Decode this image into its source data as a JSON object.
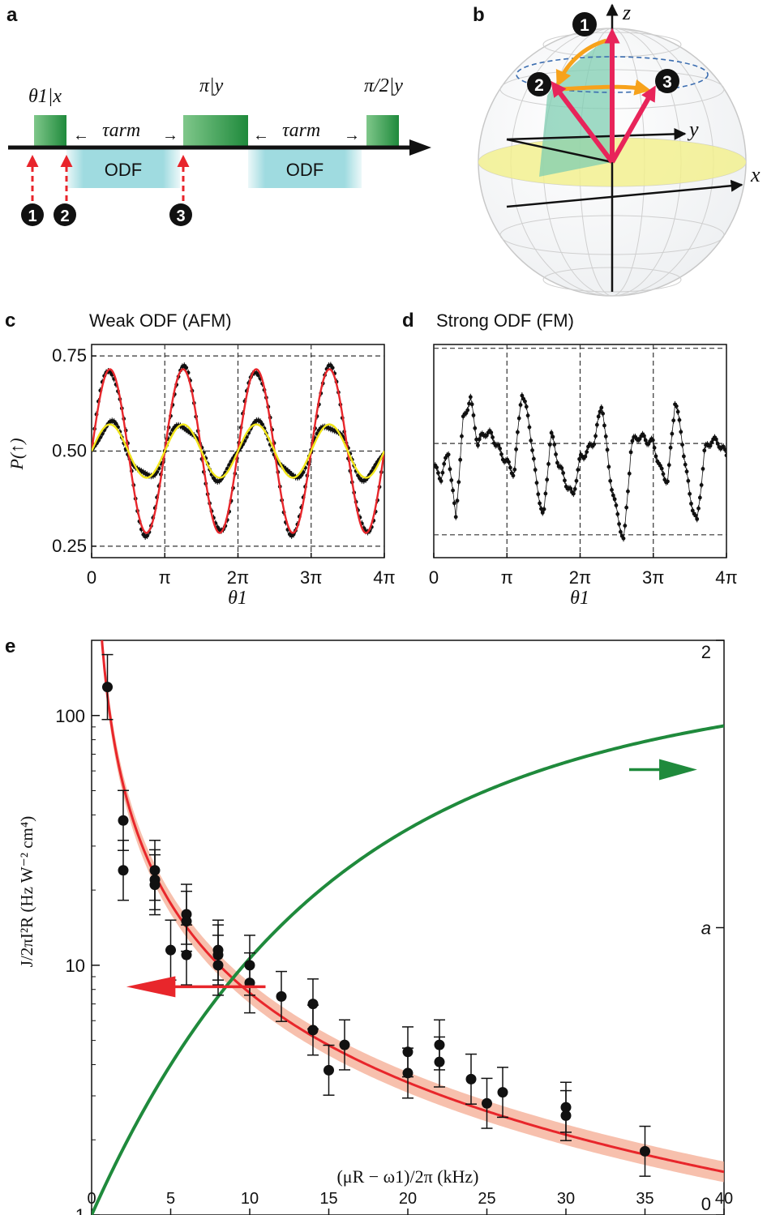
{
  "panels": {
    "a": {
      "label": "a",
      "pulse_labels": [
        "θ1|x",
        "π|y",
        "π/2|y"
      ],
      "tau_label": "τarm",
      "odf_labels": [
        "ODF",
        "ODF"
      ],
      "markers": [
        "1",
        "2",
        "3"
      ],
      "colors": {
        "pulse": "#2f9a46",
        "odf": "#9fdbe0",
        "marker": "#e8242b"
      }
    },
    "b": {
      "label": "b",
      "axis_labels": {
        "x": "x",
        "y": "y",
        "z": "z"
      },
      "markers": [
        "1",
        "2",
        "3"
      ],
      "colors": {
        "vector": "#e8245a",
        "path": "#f7a21b",
        "plane": "#f3f08a",
        "wedge": "#7fcdb2"
      }
    },
    "c": {
      "label": "c",
      "title": "Weak ODF (AFM)"
    },
    "d": {
      "label": "d",
      "title": "Strong ODF (FM)"
    },
    "e": {
      "label": "e"
    }
  },
  "chart_data": [
    {
      "id": "c",
      "type": "scatter",
      "title": "Weak ODF (AFM)",
      "xlabel": "θ1",
      "ylabel": "P(↑)",
      "xlim": [
        0,
        4
      ],
      "ylim": [
        0.22,
        0.78
      ],
      "x_unit": "π",
      "xticks": [
        0,
        1,
        2,
        3,
        4
      ],
      "xtick_labels": [
        "0",
        "π",
        "2π",
        "3π",
        "4π"
      ],
      "yticks": [
        0.25,
        0.5,
        0.75
      ],
      "ytick_labels": [
        "0.25",
        "0.50",
        "0.75"
      ],
      "hlines": [
        0.25,
        0.5,
        0.75
      ],
      "vlines": [
        1,
        2,
        3
      ],
      "series": [
        {
          "kind": "fit",
          "color": "#e8262b",
          "mean": 0.5,
          "amplitude": 0.215,
          "period": 1,
          "phase": 0.25
        },
        {
          "kind": "fit",
          "color": "#f2e61a",
          "mean": 0.5,
          "amplitude": 0.07,
          "period": 1,
          "phase": 0.25
        },
        {
          "kind": "data",
          "color": "#111111",
          "mean": 0.5,
          "amplitude": 0.215,
          "period": 1,
          "phase": 0.25,
          "points": 150
        },
        {
          "kind": "data",
          "color": "#111111",
          "mean": 0.5,
          "amplitude": 0.07,
          "period": 1,
          "phase": 0.25,
          "points": 150
        }
      ]
    },
    {
      "id": "d",
      "type": "scatter",
      "title": "Strong ODF (FM)",
      "xlabel": "θ1",
      "xlim": [
        0,
        4
      ],
      "ylim": [
        0.22,
        0.78
      ],
      "x_unit": "π",
      "xticks": [
        0,
        1,
        2,
        3,
        4
      ],
      "xtick_labels": [
        "0",
        "π",
        "2π",
        "3π",
        "4π"
      ],
      "hlines": [
        0.28,
        0.52,
        0.77
      ],
      "vlines": [
        1,
        2,
        3
      ],
      "series": [
        {
          "kind": "data",
          "color": "#111111",
          "x": [
            0.0,
            0.1,
            0.2,
            0.3,
            0.4,
            0.5,
            0.6,
            0.7,
            0.8,
            0.9,
            1.0,
            1.1,
            1.2,
            1.3,
            1.4,
            1.5,
            1.6,
            1.7,
            1.8,
            1.9,
            2.0,
            2.1,
            2.2,
            2.3,
            2.4,
            2.5,
            2.6,
            2.7,
            2.8,
            2.9,
            3.0,
            3.1,
            3.2,
            3.3,
            3.4,
            3.5,
            3.6,
            3.7,
            3.8,
            3.9,
            4.0
          ],
          "y": [
            0.46,
            0.43,
            0.5,
            0.32,
            0.58,
            0.64,
            0.52,
            0.55,
            0.54,
            0.5,
            0.47,
            0.44,
            0.66,
            0.58,
            0.42,
            0.32,
            0.55,
            0.47,
            0.42,
            0.38,
            0.48,
            0.5,
            0.53,
            0.63,
            0.44,
            0.34,
            0.26,
            0.52,
            0.54,
            0.53,
            0.52,
            0.45,
            0.42,
            0.64,
            0.52,
            0.38,
            0.31,
            0.5,
            0.53,
            0.52,
            0.49
          ]
        }
      ]
    },
    {
      "id": "e",
      "type": "scatter",
      "xlabel": "(μR − ω1)/2π (kHz)",
      "ylabel": "J/2πI²R (Hz W⁻² cm⁴)",
      "y2label": "a",
      "xlim": [
        0,
        40
      ],
      "ylim": [
        1,
        200
      ],
      "yscale": "log",
      "y2lim": [
        0,
        2
      ],
      "xticks": [
        0,
        5,
        10,
        15,
        20,
        25,
        30,
        35,
        40
      ],
      "yticks": [
        1,
        10,
        100
      ],
      "ytick_labels": [
        "1",
        "10",
        "100"
      ],
      "y2ticks": [
        0,
        1,
        2
      ],
      "y2tick_labels": [
        "0",
        "a",
        "2"
      ],
      "series": [
        {
          "kind": "data",
          "color": "#111111",
          "x": [
            1,
            2,
            2,
            4,
            4,
            4,
            5,
            6,
            6,
            6,
            8,
            8,
            8,
            10,
            10,
            12,
            14,
            14,
            15,
            16,
            20,
            20,
            22,
            22,
            24,
            25,
            26,
            30,
            30,
            35
          ],
          "y": [
            130,
            38,
            24,
            24,
            22,
            21,
            11.5,
            16,
            15,
            11,
            11.5,
            11,
            10,
            10,
            8.5,
            7.5,
            7,
            5.5,
            3.8,
            4.8,
            4.5,
            3.7,
            4.8,
            4.1,
            3.5,
            2.8,
            3.1,
            2.7,
            2.5,
            1.8
          ],
          "err": [
            0.13,
            0.12,
            0.12,
            0.12,
            0.12,
            0.12,
            0.12,
            0.12,
            0.12,
            0.12,
            0.12,
            0.12,
            0.12,
            0.12,
            0.12,
            0.1,
            0.1,
            0.1,
            0.1,
            0.1,
            0.1,
            0.1,
            0.1,
            0.1,
            0.1,
            0.1,
            0.1,
            0.1,
            0.1,
            0.1
          ]
        },
        {
          "kind": "fit",
          "name": "J fit",
          "axis": "left",
          "color": "#e8262b",
          "band_color": "#f4a58a",
          "A": 120,
          "exponent": 1.19
        },
        {
          "kind": "fit",
          "name": "a",
          "axis": "right",
          "color": "#1f8a3c",
          "function": "1.7*(1-exp(-x/14))+0.1*x/40"
        }
      ],
      "arrows": [
        {
          "direction": "left",
          "color": "#e8262b"
        },
        {
          "direction": "right",
          "color": "#1f8a3c"
        }
      ]
    }
  ]
}
